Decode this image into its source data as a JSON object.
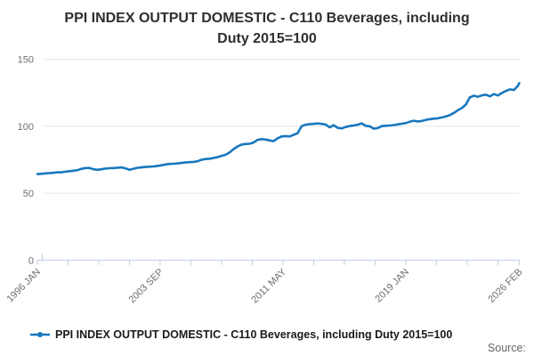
{
  "title": {
    "line1": "PPI INDEX OUTPUT DOMESTIC - C110 Beverages, including",
    "line2": "Duty 2015=100",
    "full": "PPI INDEX OUTPUT DOMESTIC - C110 Beverages, including Duty 2015=100"
  },
  "legend": {
    "label": "PPI INDEX OUTPUT DOMESTIC - C110 Beverages, including Duty 2015=100"
  },
  "source_label": "Source:",
  "colors": {
    "line": "#1878BE",
    "gridline": "#E6E6E6",
    "axis": "#BFCBE0",
    "tick": "#BFCBE0",
    "axis_label": "#6E6E6E",
    "title_text": "#2E2E2E",
    "source_text": "#666666",
    "background": "#FFFFFF"
  },
  "chart_data": {
    "type": "line",
    "title": "PPI INDEX OUTPUT DOMESTIC - C110 Beverages, including Duty 2015=100",
    "xlabel": "",
    "ylabel": "",
    "grid": true,
    "legend_position": "bottom-left",
    "y_axis": {
      "ylim": [
        0,
        150
      ],
      "ticks": [
        0,
        50,
        100,
        150
      ],
      "gridlines": [
        50,
        100,
        150
      ]
    },
    "x_axis": {
      "unit": "months since 1996 JAN",
      "range_months": [
        0,
        361
      ],
      "minor_tick_interval_months": 23,
      "ticks": [
        {
          "m": 0,
          "label": "1996 JAN"
        },
        {
          "m": 92,
          "label": "2003 SEP"
        },
        {
          "m": 184,
          "label": "2011 MAY"
        },
        {
          "m": 276,
          "label": "2019 JAN"
        },
        {
          "m": 361,
          "label": "2026 FEB"
        }
      ]
    },
    "series": [
      {
        "name": "PPI INDEX OUTPUT DOMESTIC - C110 Beverages, including Duty 2015=100",
        "x_months": [
          0,
          3,
          6,
          9,
          12,
          15,
          18,
          21,
          24,
          27,
          30,
          33,
          36,
          39,
          42,
          45,
          48,
          51,
          54,
          57,
          60,
          63,
          66,
          69,
          72,
          75,
          78,
          81,
          84,
          87,
          90,
          93,
          96,
          99,
          102,
          105,
          108,
          111,
          114,
          117,
          120,
          123,
          126,
          129,
          132,
          135,
          138,
          141,
          144,
          147,
          150,
          153,
          156,
          159,
          162,
          165,
          168,
          171,
          174,
          177,
          180,
          183,
          186,
          189,
          192,
          195,
          198,
          201,
          204,
          207,
          210,
          213,
          216,
          219,
          222,
          225,
          228,
          231,
          234,
          237,
          240,
          243,
          246,
          249,
          252,
          255,
          258,
          261,
          264,
          267,
          270,
          273,
          276,
          279,
          282,
          285,
          288,
          291,
          294,
          297,
          300,
          303,
          306,
          309,
          312,
          315,
          318,
          321,
          324,
          327,
          330,
          333,
          336,
          339,
          342,
          345,
          348,
          351,
          354,
          357,
          360,
          361
        ],
        "values": [
          64.3,
          64.5,
          64.8,
          65.0,
          65.2,
          65.7,
          65.6,
          66.1,
          66.5,
          66.8,
          67.2,
          68.2,
          68.8,
          68.9,
          67.9,
          67.5,
          67.9,
          68.4,
          68.7,
          68.8,
          69.0,
          69.3,
          68.6,
          67.5,
          68.3,
          69.0,
          69.3,
          69.6,
          69.8,
          70.0,
          70.4,
          70.9,
          71.5,
          71.9,
          72.0,
          72.3,
          72.6,
          73.0,
          73.2,
          73.4,
          73.9,
          75.0,
          75.5,
          75.8,
          76.3,
          77.0,
          77.9,
          78.7,
          80.5,
          83.0,
          85.0,
          86.4,
          86.8,
          87.0,
          87.9,
          89.9,
          90.4,
          90.1,
          89.4,
          88.9,
          91.1,
          92.4,
          92.7,
          92.4,
          93.6,
          94.8,
          100.1,
          101.2,
          101.5,
          101.8,
          102.1,
          101.8,
          101.3,
          99.2,
          100.8,
          98.9,
          98.4,
          99.5,
          100.2,
          100.6,
          101.1,
          102.2,
          100.3,
          100.0,
          98.2,
          98.7,
          100.1,
          100.4,
          100.6,
          100.9,
          101.4,
          101.9,
          102.4,
          103.4,
          104.2,
          103.6,
          104.0,
          104.8,
          105.3,
          105.7,
          106.0,
          106.6,
          107.3,
          108.3,
          110.0,
          112.0,
          113.6,
          116.2,
          121.6,
          122.9,
          122.1,
          123.1,
          123.6,
          122.4,
          124.1,
          123.0,
          124.9,
          126.4,
          127.6,
          127.1,
          130.2,
          132.3
        ]
      }
    ]
  }
}
